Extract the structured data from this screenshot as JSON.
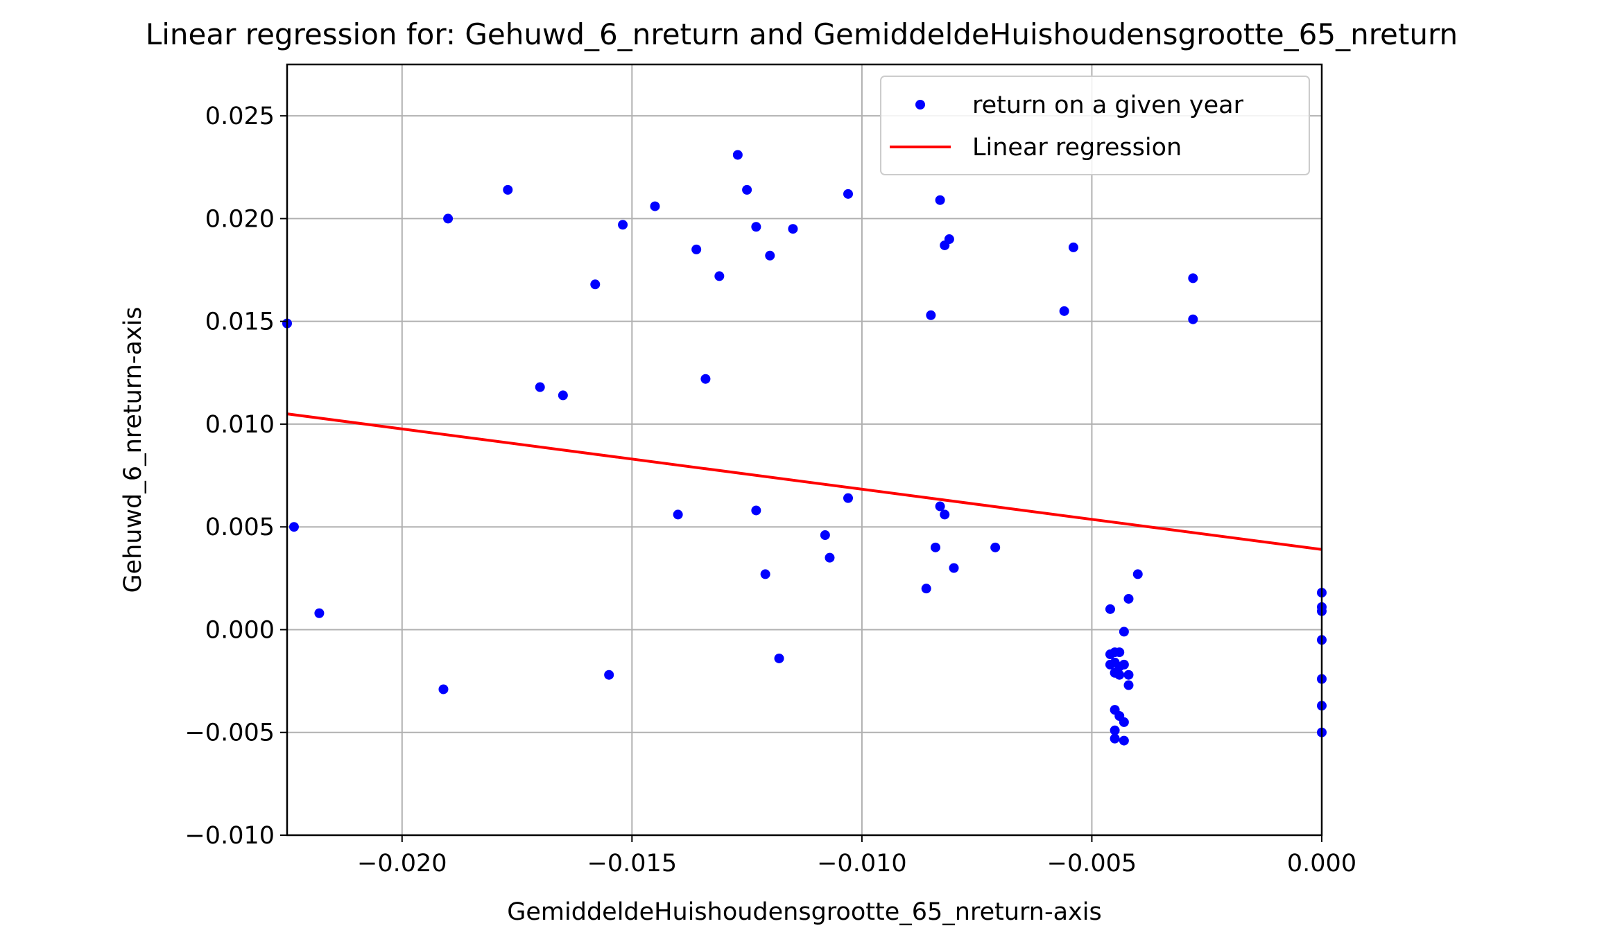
{
  "chart_data": {
    "type": "scatter",
    "title": "Linear regression for: Gehuwd_6_nreturn and GemiddeldeHuishoudensgrootte_65_nreturn",
    "xlabel": "GemiddeldeHuishoudensgrootte_65_nreturn-axis",
    "ylabel": "Gehuwd_6_nreturn-axis",
    "xlim": [
      -0.0225,
      0.0
    ],
    "ylim": [
      -0.01,
      0.0275
    ],
    "x_ticks": [
      -0.02,
      -0.015,
      -0.01,
      -0.005,
      0.0
    ],
    "x_tick_labels": [
      "−0.020",
      "−0.015",
      "−0.010",
      "−0.005",
      "0.000"
    ],
    "y_ticks": [
      -0.01,
      -0.005,
      0.0,
      0.005,
      0.01,
      0.015,
      0.02,
      0.025
    ],
    "y_tick_labels": [
      "−0.010",
      "−0.005",
      "0.000",
      "0.005",
      "0.010",
      "0.015",
      "0.020",
      "0.025"
    ],
    "grid": true,
    "legend_position": "top-right",
    "legend": [
      {
        "label": "return on a given year",
        "kind": "marker",
        "color": "#0000ff"
      },
      {
        "label": "Linear regression",
        "kind": "line",
        "color": "#ff0000"
      }
    ],
    "series": [
      {
        "name": "return on a given year",
        "kind": "scatter",
        "color": "#0000ff",
        "points": [
          [
            -0.0225,
            0.0149
          ],
          [
            -0.02235,
            0.005
          ],
          [
            -0.0218,
            0.0008
          ],
          [
            -0.019,
            0.02
          ],
          [
            -0.0191,
            -0.0029
          ],
          [
            -0.0177,
            0.0214
          ],
          [
            -0.017,
            0.0118
          ],
          [
            -0.0165,
            0.0114
          ],
          [
            -0.0158,
            0.0168
          ],
          [
            -0.0155,
            -0.0022
          ],
          [
            -0.0152,
            0.0197
          ],
          [
            -0.0145,
            0.0206
          ],
          [
            -0.014,
            0.0056
          ],
          [
            -0.0136,
            0.0185
          ],
          [
            -0.0134,
            0.0122
          ],
          [
            -0.0131,
            0.0172
          ],
          [
            -0.0127,
            0.0231
          ],
          [
            -0.0125,
            0.0214
          ],
          [
            -0.0123,
            0.0196
          ],
          [
            -0.0123,
            0.0058
          ],
          [
            -0.0121,
            0.0027
          ],
          [
            -0.012,
            0.0182
          ],
          [
            -0.0118,
            -0.0014
          ],
          [
            -0.0115,
            0.0195
          ],
          [
            -0.0108,
            0.0046
          ],
          [
            -0.0107,
            0.0035
          ],
          [
            -0.0103,
            0.0212
          ],
          [
            -0.0103,
            0.0064
          ],
          [
            -0.0086,
            0.002
          ],
          [
            -0.0085,
            0.0153
          ],
          [
            -0.0084,
            0.004
          ],
          [
            -0.0083,
            0.0209
          ],
          [
            -0.0083,
            0.006
          ],
          [
            -0.0082,
            0.0187
          ],
          [
            -0.0082,
            0.0056
          ],
          [
            -0.0081,
            0.019
          ],
          [
            -0.008,
            0.003
          ],
          [
            -0.0071,
            0.004
          ],
          [
            -0.0056,
            0.0155
          ],
          [
            -0.0054,
            0.0186
          ],
          [
            -0.0028,
            0.0171
          ],
          [
            -0.0028,
            0.0151
          ],
          [
            -0.004,
            0.0027
          ],
          [
            -0.0042,
            0.0015
          ],
          [
            -0.0046,
            0.001
          ],
          [
            -0.0043,
            -0.0001
          ],
          [
            -0.0046,
            -0.0012
          ],
          [
            -0.0045,
            -0.0011
          ],
          [
            -0.0044,
            -0.0011
          ],
          [
            -0.0046,
            -0.0017
          ],
          [
            -0.0045,
            -0.0016
          ],
          [
            -0.0044,
            -0.0018
          ],
          [
            -0.0043,
            -0.0017
          ],
          [
            -0.0045,
            -0.0021
          ],
          [
            -0.0044,
            -0.0022
          ],
          [
            -0.0042,
            -0.0022
          ],
          [
            -0.0042,
            -0.0027
          ],
          [
            -0.0045,
            -0.0039
          ],
          [
            -0.0044,
            -0.0042
          ],
          [
            -0.0043,
            -0.0045
          ],
          [
            -0.0045,
            -0.0049
          ],
          [
            -0.0045,
            -0.0053
          ],
          [
            -0.0043,
            -0.0054
          ],
          [
            0.0,
            0.0018
          ],
          [
            0.0,
            0.0011
          ],
          [
            0.0,
            0.0009
          ],
          [
            0.0,
            -0.0005
          ],
          [
            0.0,
            -0.0024
          ],
          [
            0.0,
            -0.0037
          ],
          [
            0.0,
            -0.005
          ]
        ]
      },
      {
        "name": "Linear regression",
        "kind": "line",
        "color": "#ff0000",
        "points": [
          [
            -0.0225,
            0.0105
          ],
          [
            0.0,
            0.0039
          ]
        ]
      }
    ]
  }
}
